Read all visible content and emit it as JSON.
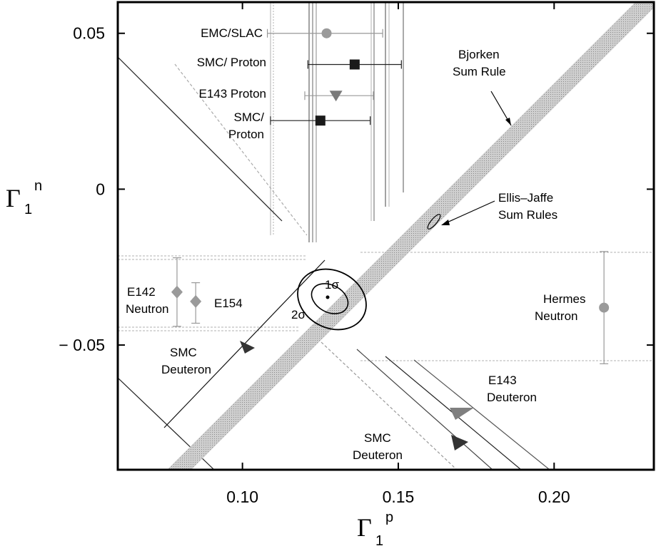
{
  "chart_data": {
    "type": "scatter",
    "xlabel": {
      "main": "Γ",
      "sub": "1",
      "sup": "p"
    },
    "ylabel": {
      "main": "Γ",
      "sub": "1",
      "sup": "n"
    },
    "xlim": [
      0.06,
      0.232
    ],
    "ylim": [
      -0.09,
      0.06
    ],
    "x_ticks": [
      {
        "value": 0.1,
        "label": "0.10"
      },
      {
        "value": 0.15,
        "label": "0.15"
      },
      {
        "value": 0.2,
        "label": "0.20"
      }
    ],
    "y_ticks": [
      {
        "value": 0.05,
        "label": "0.05"
      },
      {
        "value": 0.0,
        "label": "0"
      },
      {
        "value": -0.05,
        "label": "− 0.05"
      }
    ],
    "grid": false,
    "proton_points": [
      {
        "label": "EMC/SLAC",
        "x": 0.127,
        "y": 0.05,
        "xerr_low": 0.108,
        "xerr_high": 0.145,
        "marker": "circle",
        "color": "#9a9a9a"
      },
      {
        "label": "SMC/ Proton",
        "x": 0.136,
        "y": 0.04,
        "xerr_low": 0.121,
        "xerr_high": 0.151,
        "marker": "square",
        "color": "#1a1a1a"
      },
      {
        "label": "E143 Proton",
        "x": 0.13,
        "y": 0.03,
        "xerr_low": 0.12,
        "xerr_high": 0.142,
        "marker": "triangle-down",
        "color": "#7a7a7a"
      },
      {
        "label": "SMC/ Proton",
        "label_lines": [
          "SMC/",
          "Proton"
        ],
        "x": 0.125,
        "y": 0.022,
        "xerr_low": 0.109,
        "xerr_high": 0.141,
        "marker": "square",
        "color": "#1a1a1a"
      }
    ],
    "neutron_points": [
      {
        "label": "E142 Neutron",
        "label_lines": [
          "E142",
          "Neutron"
        ],
        "x": 0.079,
        "y": -0.033,
        "yerr_low": -0.044,
        "yerr_high": -0.022,
        "marker": "diamond",
        "color": "#9a9a9a"
      },
      {
        "label": "E154",
        "x": 0.085,
        "y": -0.036,
        "yerr_low": -0.043,
        "yerr_high": -0.03,
        "marker": "diamond",
        "color": "#9a9a9a"
      },
      {
        "label": "Hermes Neutron",
        "label_lines": [
          "Hermes",
          "Neutron"
        ],
        "x": 0.216,
        "y": -0.038,
        "yerr_low": -0.056,
        "yerr_high": -0.02,
        "marker": "circle",
        "color": "#9a9a9a"
      }
    ],
    "bjorken_sum_rule": {
      "label": "Bjorken Sum Rule",
      "label_lines": [
        "Bjorken",
        "Sum Rule"
      ],
      "slope": 1,
      "intercept": -0.184
    },
    "ellis_jaffe_sum_rules": {
      "label": "Ellis–Jaffe Sum Rules",
      "label_lines": [
        "Ellis–Jaffe",
        "Sum Rules"
      ],
      "x": 0.161,
      "y": -0.01
    },
    "combined_fit": {
      "center": {
        "x": 0.126,
        "y": -0.035
      },
      "contours": [
        {
          "label": "1σ"
        },
        {
          "label": "2σ"
        }
      ]
    },
    "deuteron_bands": [
      {
        "label": "SMC Deuteron",
        "label_lines": [
          "SMC",
          "Deuteron"
        ],
        "slope": -1
      },
      {
        "label": "E143 Deuteron",
        "label_lines": [
          "E143",
          "Deuteron"
        ],
        "slope": -1
      },
      {
        "label": "SMC Deuteron",
        "label_lines": [
          "SMC",
          "Deuteron"
        ],
        "slope": -1
      }
    ]
  }
}
